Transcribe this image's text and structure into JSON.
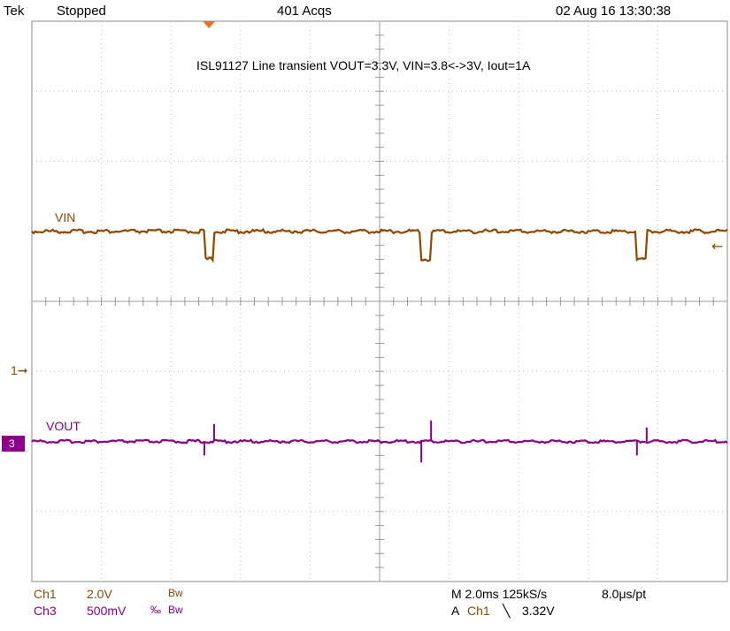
{
  "header": {
    "brand": "Tek",
    "status": "Stopped",
    "acqs": "401 Acqs",
    "datetime": "02 Aug 16 13:30:38"
  },
  "title": "ISL91127 Line transient VOUT=3.3V, VIN=3.8<->3V, Iout=1A",
  "channels": {
    "ch1_label": "VIN",
    "ch3_label": "VOUT",
    "ch1_marker": "1",
    "ch3_marker": "3"
  },
  "footer": {
    "ch1_name": "Ch1",
    "ch1_scale": "2.0V",
    "ch1_bw": "Bw",
    "ch3_name": "Ch3",
    "ch3_scale": "500mV",
    "ch3_bw": "Bw",
    "timebase": "M 2.0ms 125kS/s",
    "pt": "8.0μs/pt",
    "trigger_prefix": "A",
    "trigger_source": "Ch1",
    "trigger_level": "3.32V"
  },
  "colors": {
    "ch1": "#8b4a00",
    "ch3": "#8b008b",
    "grid": "#bdbdbd"
  },
  "chart_data": {
    "type": "line",
    "title": "ISL91127 Line transient VOUT=3.3V, VIN=3.8<->3V, Iout=1A",
    "x_unit": "div",
    "xlim": [
      0,
      10
    ],
    "ylim": [
      -4,
      4
    ],
    "grid": true,
    "series": [
      {
        "name": "VIN",
        "baseline_div": 1.0,
        "dips": [
          {
            "start": 2.48,
            "end": 2.62,
            "depth": -0.4
          },
          {
            "start": 5.6,
            "end": 5.74,
            "depth": -0.4
          },
          {
            "start": 8.7,
            "end": 8.84,
            "depth": -0.4
          }
        ]
      },
      {
        "name": "VOUT",
        "baseline_div": -2.0,
        "spikes": [
          {
            "x": 2.48,
            "dy": -0.2
          },
          {
            "x": 2.62,
            "dy": 0.25
          },
          {
            "x": 5.6,
            "dy": -0.3
          },
          {
            "x": 5.74,
            "dy": 0.3
          },
          {
            "x": 8.7,
            "dy": -0.2
          },
          {
            "x": 8.84,
            "dy": 0.2
          }
        ]
      }
    ]
  }
}
